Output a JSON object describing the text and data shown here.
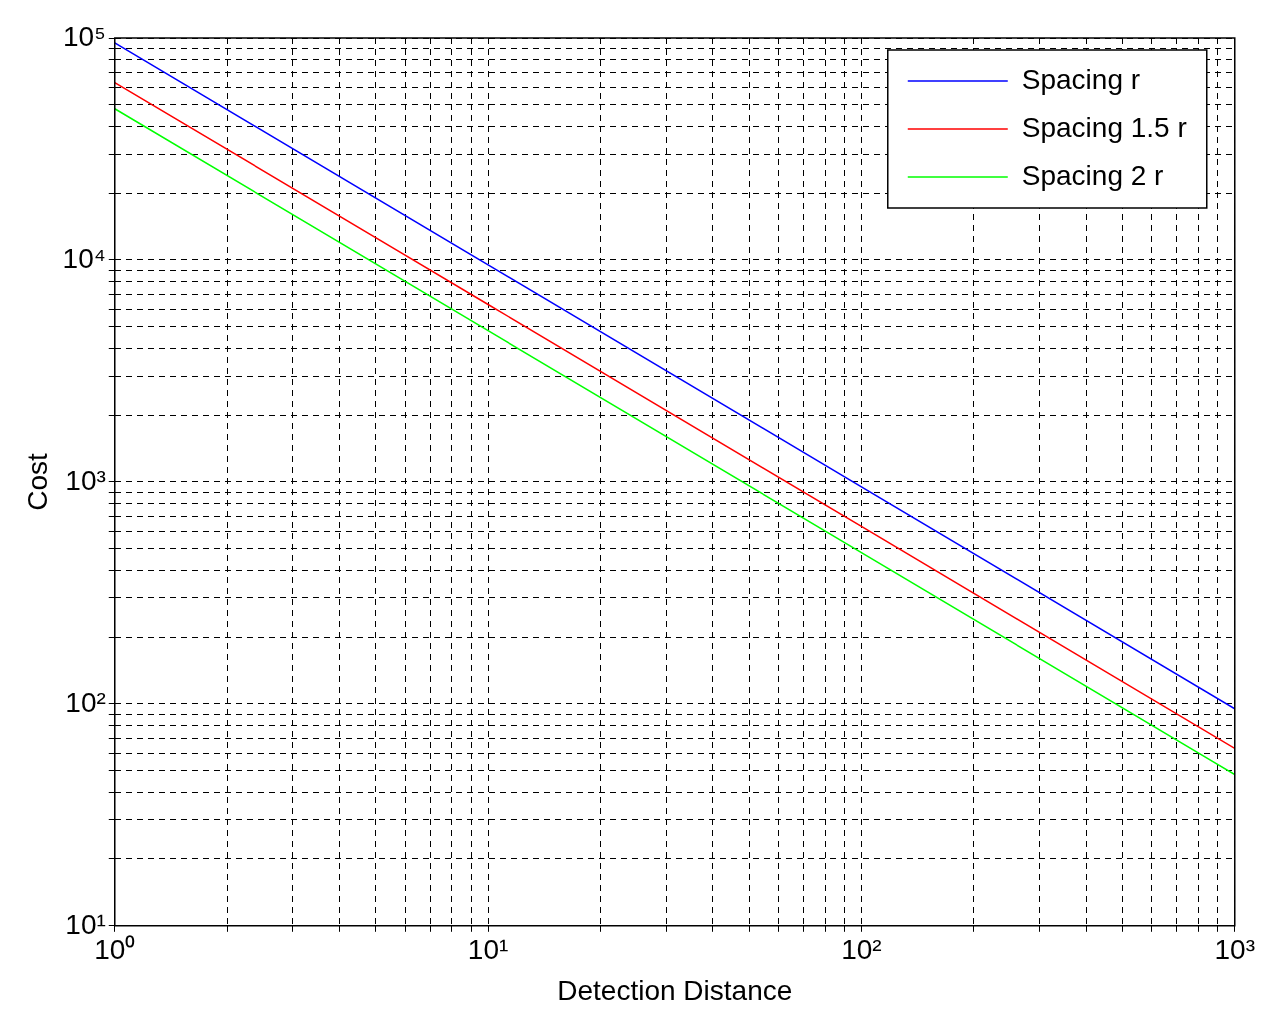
{
  "chart_data": {
    "type": "line",
    "xlabel": "Detection Distance",
    "ylabel": "Cost",
    "log": "xy",
    "grid": true,
    "legend": "top right",
    "line_style": "solid",
    "marker": "none",
    "x": [
      1,
      10,
      100,
      1000
    ],
    "series": [
      {
        "name": "Spacing r",
        "color": "#0000ff",
        "values": [
          95000,
          9500,
          950,
          95
        ]
      },
      {
        "name": "Spacing 1.5 r",
        "color": "#ff0000",
        "values": [
          63000,
          6300,
          630,
          63
        ]
      },
      {
        "name": "Spacing 2 r",
        "color": "#00ff00",
        "values": [
          48000,
          4800,
          480,
          48
        ]
      }
    ],
    "xlim": [
      1,
      1000
    ],
    "xticks": [
      {
        "value": 1,
        "label": "10⁰"
      },
      {
        "value": 2,
        "label": null
      },
      {
        "value": 3,
        "label": null
      },
      {
        "value": 4,
        "label": null
      },
      {
        "value": 5,
        "label": null
      },
      {
        "value": 6,
        "label": null
      },
      {
        "value": 7,
        "label": null
      },
      {
        "value": 8,
        "label": null
      },
      {
        "value": 9,
        "label": null
      },
      {
        "value": 10,
        "label": "10¹"
      },
      {
        "value": 20,
        "label": null
      },
      {
        "value": 30,
        "label": null
      },
      {
        "value": 40,
        "label": null
      },
      {
        "value": 50,
        "label": null
      },
      {
        "value": 60,
        "label": null
      },
      {
        "value": 70,
        "label": null
      },
      {
        "value": 80,
        "label": null
      },
      {
        "value": 90,
        "label": null
      },
      {
        "value": 100,
        "label": "10²"
      },
      {
        "value": 200,
        "label": null
      },
      {
        "value": 300,
        "label": null
      },
      {
        "value": 400,
        "label": null
      },
      {
        "value": 500,
        "label": null
      },
      {
        "value": 600,
        "label": null
      },
      {
        "value": 700,
        "label": null
      },
      {
        "value": 800,
        "label": null
      },
      {
        "value": 900,
        "label": null
      },
      {
        "value": 1000,
        "label": "10³"
      }
    ],
    "ylim": [
      10,
      100000
    ],
    "yticks": [
      {
        "value": 10,
        "label": "10¹"
      },
      {
        "value": 20,
        "label": null
      },
      {
        "value": 30,
        "label": null
      },
      {
        "value": 40,
        "label": null
      },
      {
        "value": 50,
        "label": null
      },
      {
        "value": 60,
        "label": null
      },
      {
        "value": 70,
        "label": null
      },
      {
        "value": 80,
        "label": null
      },
      {
        "value": 90,
        "label": null
      },
      {
        "value": 100,
        "label": "10²"
      },
      {
        "value": 200,
        "label": null
      },
      {
        "value": 300,
        "label": null
      },
      {
        "value": 400,
        "label": null
      },
      {
        "value": 500,
        "label": null
      },
      {
        "value": 600,
        "label": null
      },
      {
        "value": 700,
        "label": null
      },
      {
        "value": 800,
        "label": null
      },
      {
        "value": 900,
        "label": null
      },
      {
        "value": 1000,
        "label": "10³"
      },
      {
        "value": 2000,
        "label": null
      },
      {
        "value": 3000,
        "label": null
      },
      {
        "value": 4000,
        "label": null
      },
      {
        "value": 5000,
        "label": null
      },
      {
        "value": 6000,
        "label": null
      },
      {
        "value": 7000,
        "label": null
      },
      {
        "value": 8000,
        "label": null
      },
      {
        "value": 9000,
        "label": null
      },
      {
        "value": 10000,
        "label": "10⁴"
      },
      {
        "value": 20000,
        "label": null
      },
      {
        "value": 30000,
        "label": null
      },
      {
        "value": 40000,
        "label": null
      },
      {
        "value": 50000,
        "label": null
      },
      {
        "value": 60000,
        "label": null
      },
      {
        "value": 70000,
        "label": null
      },
      {
        "value": 80000,
        "label": null
      },
      {
        "value": 90000,
        "label": null
      },
      {
        "value": 100000,
        "label": "10⁵"
      }
    ]
  }
}
